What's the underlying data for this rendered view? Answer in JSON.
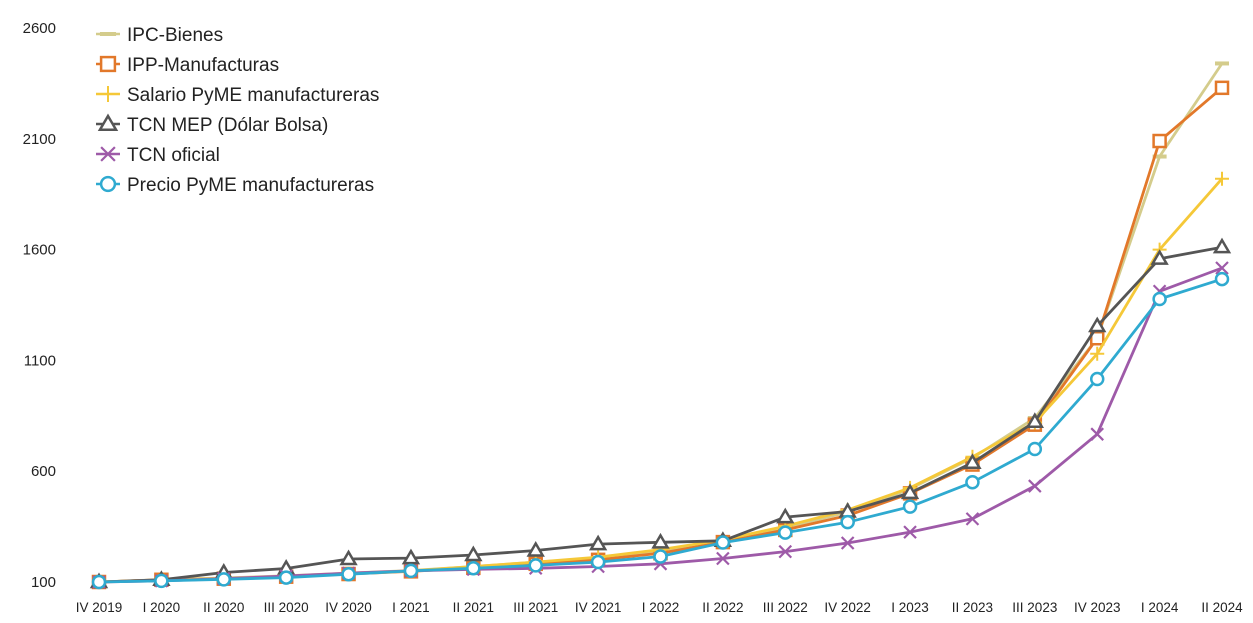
{
  "chart_data": {
    "type": "line",
    "categories": [
      "IV 2019",
      "I 2020",
      "II 2020",
      "III 2020",
      "IV 2020",
      "I 2021",
      "II 2021",
      "III 2021",
      "IV 2021",
      "I 2022",
      "II 2022",
      "III 2022",
      "IV 2022",
      "I 2023",
      "II 2023",
      "III 2023",
      "IV 2023",
      "I 2024",
      "II 2024"
    ],
    "ylim": [
      100,
      2600
    ],
    "yticks": [
      100,
      600,
      1100,
      1600,
      2100,
      2600
    ],
    "grid": false,
    "legend_position": "top-left",
    "series": [
      {
        "name": "IPC-Bienes",
        "color": "#d4cc8c",
        "marker": "dash",
        "values": [
          100,
          111,
          118,
          128,
          140,
          152,
          170,
          190,
          208,
          238,
          285,
          345,
          415,
          520,
          660,
          840,
          1200,
          2020,
          2440
        ]
      },
      {
        "name": "IPP-Manufacturas",
        "color": "#e2782a",
        "marker": "square",
        "values": [
          100,
          110,
          115,
          124,
          136,
          148,
          164,
          182,
          200,
          230,
          280,
          335,
          400,
          500,
          630,
          810,
          1200,
          2090,
          2330
        ]
      },
      {
        "name": "Salario PyME manufactureras",
        "color": "#f5c838",
        "marker": "plus",
        "values": [
          100,
          108,
          116,
          124,
          137,
          150,
          170,
          190,
          212,
          246,
          290,
          352,
          425,
          525,
          665,
          820,
          1130,
          1600,
          1920
        ]
      },
      {
        "name": "TCN MEP (Dólar Bolsa)",
        "color": "#555555",
        "marker": "triangle",
        "values": [
          100,
          110,
          143,
          161,
          204,
          208,
          222,
          242,
          271,
          279,
          286,
          393,
          418,
          502,
          638,
          823,
          1255,
          1559,
          1611
        ]
      },
      {
        "name": "TCN oficial",
        "color": "#9e5aa8",
        "marker": "x",
        "values": [
          100,
          105,
          115,
          127,
          140,
          150,
          157,
          162,
          170,
          182,
          206,
          237,
          276,
          325,
          385,
          533,
          767,
          1412,
          1517
        ]
      },
      {
        "name": "Precio PyME manufactureras",
        "color": "#2faad0",
        "marker": "circle",
        "values": [
          100,
          105,
          112,
          120,
          135,
          150,
          162,
          175,
          190,
          215,
          278,
          323,
          370,
          440,
          550,
          700,
          1016,
          1377,
          1467
        ]
      }
    ]
  }
}
